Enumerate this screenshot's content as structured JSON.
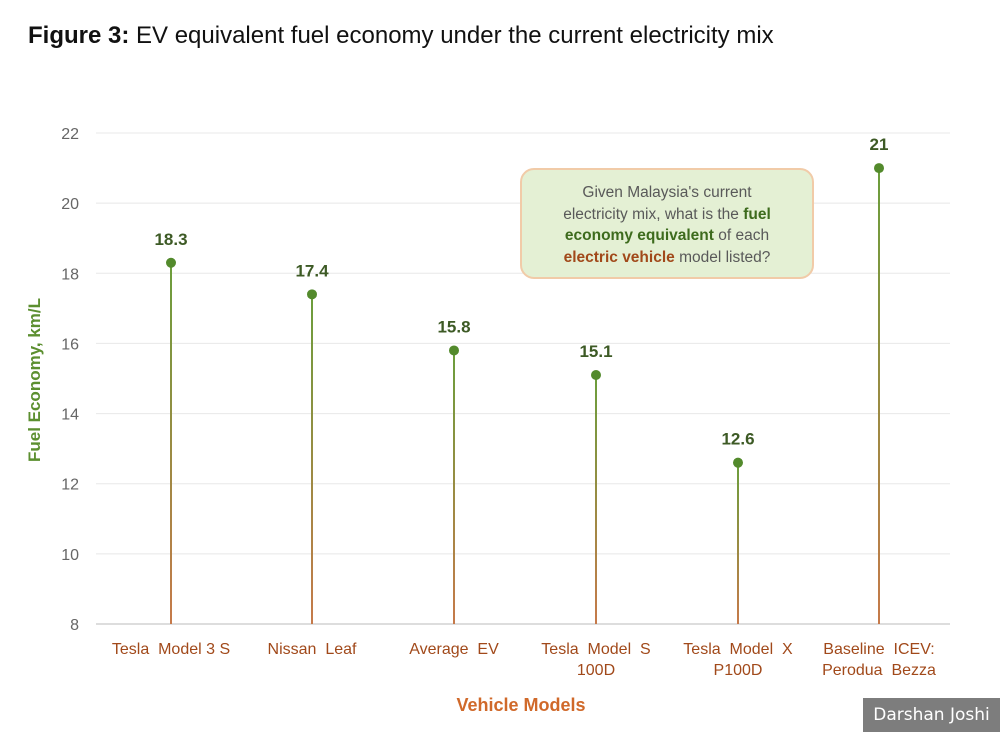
{
  "figure": {
    "label": "Figure 3:",
    "caption": "EV equivalent fuel economy under the current electricity mix"
  },
  "callout": {
    "part1": "Given Malaysia's current",
    "part2": "electricity  mix, what is the ",
    "part3": "fuel",
    "part4": "economy equivalent",
    "part5": " of each",
    "part6": "electric vehicle",
    "part7": " model listed?"
  },
  "credit": "Darshan Joshi",
  "colors": {
    "stem_top": "#6b9e3c",
    "stem_bottom": "#c67a4a",
    "marker": "#538a2c",
    "value_label": "#3d5a25",
    "ylabel": "#5c8f30",
    "xlabel": "#d0692a",
    "tick_label": "#666666",
    "category_label": "#a1491a",
    "grid": "#e8e8e8"
  },
  "chart_data": {
    "type": "lollipop",
    "categories": [
      [
        "Tesla  Model 3 S"
      ],
      [
        "Nissan  Leaf"
      ],
      [
        "Average  EV"
      ],
      [
        "Tesla  Model  S",
        "100D"
      ],
      [
        "Tesla  Model  X",
        "P100D"
      ],
      [
        "Baseline  ICEV:",
        "Perodua  Bezza"
      ]
    ],
    "values": [
      18.3,
      17.4,
      15.8,
      15.1,
      12.6,
      21
    ],
    "value_labels": [
      "18.3",
      "17.4",
      "15.8",
      "15.1",
      "12.6",
      "21"
    ],
    "ylabel": "Fuel Economy, km/L",
    "xlabel": "Vehicle Models",
    "ylim": [
      8,
      22
    ],
    "yticks": [
      8,
      10,
      12,
      14,
      16,
      18,
      20,
      22
    ],
    "grid": true
  }
}
